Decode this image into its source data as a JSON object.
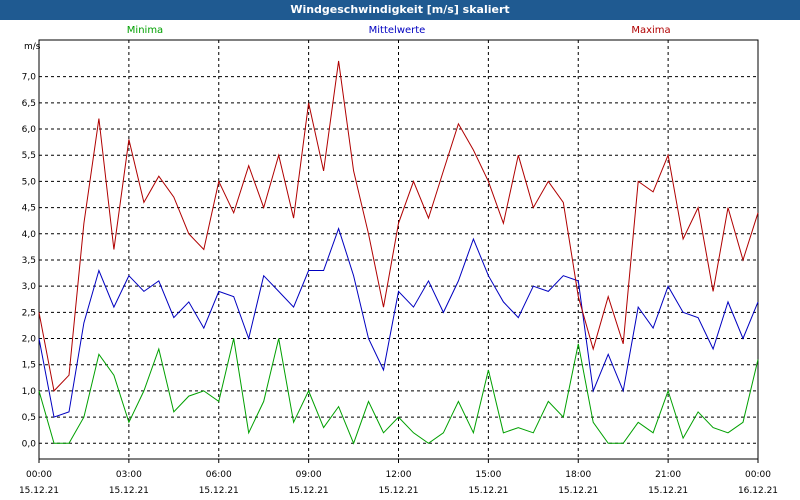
{
  "window": {
    "title": "Windgeschwindigkeit [m/s] skaliert"
  },
  "chart_data": {
    "type": "line",
    "ylabel": "m/s",
    "ylim": [
      -0.3,
      7.7
    ],
    "yticks": [
      "0,0",
      "0,5",
      "1,0",
      "1,5",
      "2,0",
      "2,5",
      "3,0",
      "3,5",
      "4,0",
      "4,5",
      "5,0",
      "5,5",
      "6,0",
      "6,5",
      "7,0"
    ],
    "xlim": [
      0,
      24
    ],
    "xticks": [
      {
        "time": "00:00",
        "date": "15.12.21"
      },
      {
        "time": "03:00",
        "date": "15.12.21"
      },
      {
        "time": "06:00",
        "date": "15.12.21"
      },
      {
        "time": "09:00",
        "date": "15.12.21"
      },
      {
        "time": "12:00",
        "date": "15.12.21"
      },
      {
        "time": "15:00",
        "date": "15.12.21"
      },
      {
        "time": "18:00",
        "date": "15.12.21"
      },
      {
        "time": "21:00",
        "date": "15.12.21"
      },
      {
        "time": "00:00",
        "date": "16.12.21"
      }
    ],
    "grid": true,
    "legend": "top",
    "series": [
      {
        "name": "Minima",
        "color": "#00a000",
        "x": [
          0,
          0.5,
          1,
          1.5,
          2,
          2.5,
          3,
          3.5,
          4,
          4.5,
          5,
          5.5,
          6,
          6.5,
          7,
          7.5,
          8,
          8.5,
          9,
          9.5,
          10,
          10.5,
          11,
          11.5,
          12,
          12.5,
          13,
          13.5,
          14,
          14.5,
          15,
          15.5,
          16,
          16.5,
          17,
          17.5,
          18,
          18.5,
          19,
          19.5,
          20,
          20.5,
          21,
          21.5,
          22,
          22.5,
          23,
          23.5,
          24
        ],
        "values": [
          1.0,
          0.0,
          0.0,
          0.5,
          1.7,
          1.3,
          0.4,
          1.0,
          1.8,
          0.6,
          0.9,
          1.0,
          0.8,
          2.0,
          0.2,
          0.8,
          2.0,
          0.4,
          1.0,
          0.3,
          0.7,
          0.0,
          0.8,
          0.2,
          0.5,
          0.2,
          0.0,
          0.2,
          0.8,
          0.2,
          1.4,
          0.2,
          0.3,
          0.2,
          0.8,
          0.5,
          1.9,
          0.4,
          0.0,
          0.0,
          0.4,
          0.2,
          1.0,
          0.1,
          0.6,
          0.3,
          0.2,
          0.4,
          1.6
        ]
      },
      {
        "name": "Mittelwerte",
        "color": "#0000c0",
        "x": [
          0,
          0.5,
          1,
          1.5,
          2,
          2.5,
          3,
          3.5,
          4,
          4.5,
          5,
          5.5,
          6,
          6.5,
          7,
          7.5,
          8,
          8.5,
          9,
          9.5,
          10,
          10.5,
          11,
          11.5,
          12,
          12.5,
          13,
          13.5,
          14,
          14.5,
          15,
          15.5,
          16,
          16.5,
          17,
          17.5,
          18,
          18.5,
          19,
          19.5,
          20,
          20.5,
          21,
          21.5,
          22,
          22.5,
          23,
          23.5,
          24
        ],
        "values": [
          2.0,
          0.5,
          0.6,
          2.3,
          3.3,
          2.6,
          3.2,
          2.9,
          3.1,
          2.4,
          2.7,
          2.2,
          2.9,
          2.8,
          2.0,
          3.2,
          2.9,
          2.6,
          3.3,
          3.3,
          4.1,
          3.2,
          2.0,
          1.4,
          2.9,
          2.6,
          3.1,
          2.5,
          3.1,
          3.9,
          3.2,
          2.7,
          2.4,
          3.0,
          2.9,
          3.2,
          3.1,
          1.0,
          1.7,
          1.0,
          2.6,
          2.2,
          3.0,
          2.5,
          2.4,
          1.8,
          2.7,
          2.0,
          2.7
        ]
      },
      {
        "name": "Maxima",
        "color": "#b00000",
        "x": [
          0,
          0.5,
          1,
          1.5,
          2,
          2.5,
          3,
          3.5,
          4,
          4.5,
          5,
          5.5,
          6,
          6.5,
          7,
          7.5,
          8,
          8.5,
          9,
          9.5,
          10,
          10.5,
          11,
          11.5,
          12,
          12.5,
          13,
          13.5,
          14,
          14.5,
          15,
          15.5,
          16,
          16.5,
          17,
          17.5,
          18,
          18.5,
          19,
          19.5,
          20,
          20.5,
          21,
          21.5,
          22,
          22.5,
          23,
          23.5,
          24
        ],
        "values": [
          2.5,
          1.0,
          1.3,
          4.2,
          6.2,
          3.7,
          5.8,
          4.6,
          5.1,
          4.7,
          4.0,
          3.7,
          5.0,
          4.4,
          5.3,
          4.5,
          5.5,
          4.3,
          6.5,
          5.2,
          7.3,
          5.2,
          4.0,
          2.6,
          4.2,
          5.0,
          4.3,
          5.2,
          6.1,
          5.6,
          5.0,
          4.2,
          5.5,
          4.5,
          5.0,
          4.6,
          2.8,
          1.8,
          2.8,
          1.9,
          5.0,
          4.8,
          5.5,
          3.9,
          4.5,
          2.9,
          4.5,
          3.5,
          4.4
        ]
      }
    ]
  }
}
